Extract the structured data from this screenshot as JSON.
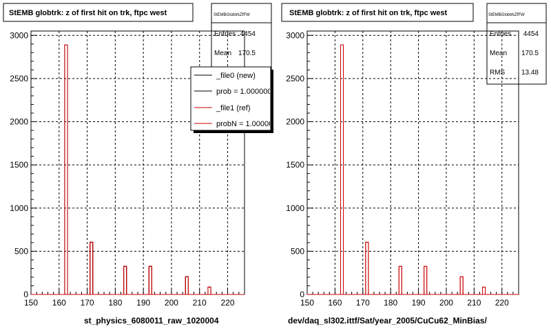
{
  "chart_data": [
    {
      "type": "bar",
      "title": "StEMB globtrk: z of first hit on trk, ftpc west",
      "xlabel": "st_physics_6080011_raw_1020004",
      "ylabel": "",
      "xlim": [
        150,
        226
      ],
      "ylim": [
        0,
        3050
      ],
      "xticks": [
        150,
        160,
        170,
        180,
        190,
        200,
        210,
        220
      ],
      "yticks": [
        0,
        500,
        1000,
        1500,
        2000,
        2500,
        3000
      ],
      "grid": true,
      "bin_width": 1,
      "series": [
        {
          "name": "_file0 (new)",
          "color": "#000000",
          "x": [
            162.5,
            171.5,
            183.5,
            192.5,
            205.5,
            213.5
          ],
          "values": [
            2890,
            605,
            325,
            325,
            205,
            85
          ]
        },
        {
          "name": "_file1 (ref)",
          "color": "#cc0000",
          "x": [
            162.5,
            171.5,
            183.5,
            192.5,
            205.5,
            213.5
          ],
          "values": [
            2890,
            605,
            325,
            325,
            205,
            85
          ]
        }
      ],
      "stats": {
        "name": "StEMBGlobtrkZfFW",
        "entries_label": "Entries",
        "entries": "4454",
        "mean_label": "Mean",
        "mean": "170.5"
      },
      "legend": {
        "placement": "top-right",
        "entries": [
          {
            "label": "_file0 (new)",
            "color": "#000000"
          },
          {
            "label": "prob = 1.000000",
            "color": "#000000"
          },
          {
            "label": "_file1 (ref)",
            "color": "#cc0000"
          },
          {
            "label": "probN = 1.000000",
            "color": "#cc0000"
          }
        ]
      }
    },
    {
      "type": "bar",
      "title": "StEMB globtrk: z of first hit on trk, ftpc west",
      "xlabel": "dev/daq_sl302.ittf/Sat/year_2005/CuCu62_MinBias/",
      "ylabel": "",
      "xlim": [
        150,
        226
      ],
      "ylim": [
        0,
        3050
      ],
      "xticks": [
        150,
        160,
        170,
        180,
        190,
        200,
        210,
        220
      ],
      "yticks": [
        0,
        500,
        1000,
        1500,
        2000,
        2500,
        3000
      ],
      "grid": true,
      "bin_width": 1,
      "series": [
        {
          "name": "",
          "color": "#cc0000",
          "x": [
            162.5,
            171.5,
            183.5,
            192.5,
            205.5,
            213.5
          ],
          "values": [
            2890,
            605,
            325,
            325,
            205,
            85
          ]
        }
      ],
      "stats": {
        "name": "StEMBGlobtrkZfFW",
        "entries_label": "Entries",
        "entries": "4454",
        "mean_label": "Mean",
        "mean": "170.5",
        "rms_label": "RMS",
        "rms": "13.48"
      }
    }
  ]
}
